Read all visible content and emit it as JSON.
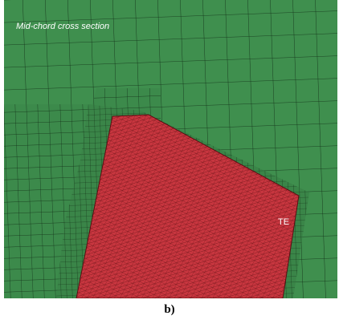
{
  "image": {
    "label": "Mid-chord cross section",
    "edge_label": "TE"
  },
  "caption": "b)"
}
